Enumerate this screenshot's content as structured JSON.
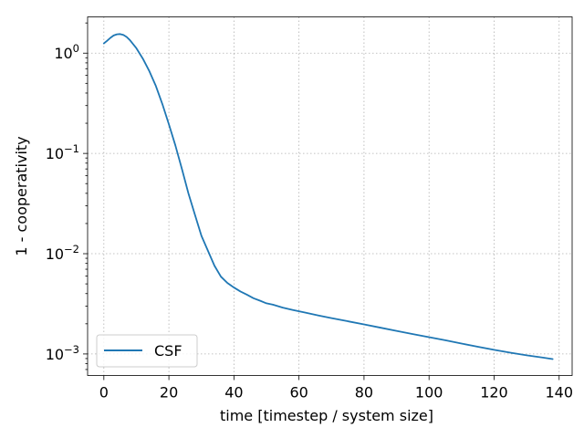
{
  "chart_data": {
    "type": "line",
    "title": "",
    "xlabel": "time [timestep / system size]",
    "ylabel": "1 - cooperativity",
    "xlim": [
      -5,
      144
    ],
    "ylim": [
      0.00061,
      2.3
    ],
    "yscale": "log",
    "grid": true,
    "legend_position": "lower left",
    "x_ticks": [
      0,
      20,
      40,
      60,
      80,
      100,
      120,
      140
    ],
    "x_tick_labels": [
      "0",
      "20",
      "40",
      "60",
      "80",
      "100",
      "120",
      "140"
    ],
    "y_ticks": [
      0.001,
      0.01,
      0.1,
      1
    ],
    "y_tick_labels": [
      {
        "base": "10",
        "exp": "−3"
      },
      {
        "base": "10",
        "exp": "−2"
      },
      {
        "base": "10",
        "exp": "−1"
      },
      {
        "base": "10",
        "exp": "0"
      }
    ],
    "colors": {
      "CSF": "#1f77b4"
    },
    "series": [
      {
        "name": "CSF",
        "x": [
          0,
          1,
          2,
          3,
          4,
          5,
          6,
          7,
          8,
          10,
          12,
          14,
          16,
          18,
          20,
          22,
          24,
          26,
          28,
          30,
          32,
          34,
          36,
          38,
          40,
          42,
          44,
          46,
          48,
          50,
          52,
          55,
          58,
          62,
          66,
          70,
          75,
          80,
          85,
          90,
          95,
          100,
          105,
          110,
          115,
          120,
          125,
          130,
          135,
          138
        ],
        "y": [
          1.25,
          1.33,
          1.42,
          1.5,
          1.54,
          1.55,
          1.52,
          1.45,
          1.35,
          1.12,
          0.88,
          0.66,
          0.47,
          0.31,
          0.195,
          0.12,
          0.07,
          0.04,
          0.0245,
          0.0151,
          0.0107,
          0.0076,
          0.0059,
          0.0051,
          0.0046,
          0.0042,
          0.0039,
          0.0036,
          0.0034,
          0.0032,
          0.0031,
          0.0029,
          0.00275,
          0.00258,
          0.00242,
          0.00228,
          0.00212,
          0.00197,
          0.00183,
          0.0017,
          0.00158,
          0.00147,
          0.00137,
          0.00127,
          0.00118,
          0.0011,
          0.00103,
          0.00097,
          0.00092,
          0.00089
        ]
      }
    ]
  }
}
